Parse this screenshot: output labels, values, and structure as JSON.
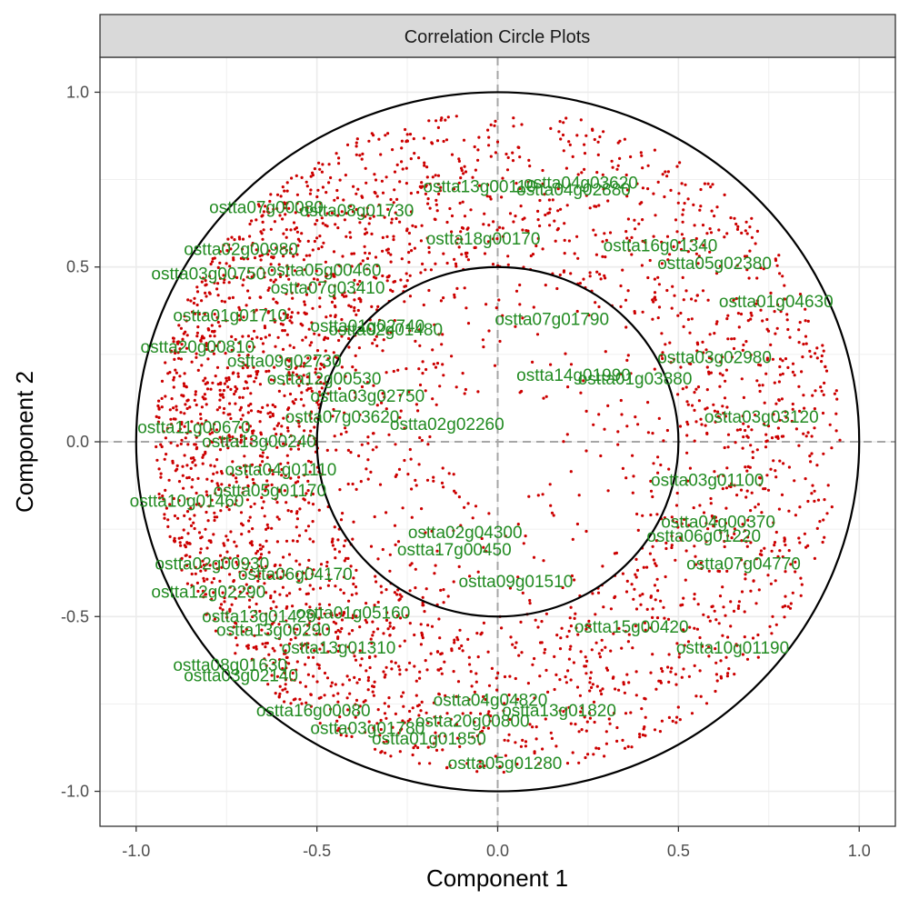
{
  "chart_data": {
    "type": "scatter",
    "panel_title": "Correlation Circle Plots",
    "xlabel": "Component  1",
    "ylabel": "Component  2",
    "xlim": [
      -1.1,
      1.1
    ],
    "ylim": [
      -1.1,
      1.1
    ],
    "x_ticks": [
      "-1.0",
      "-0.5",
      "0.0",
      "0.5",
      "1.0"
    ],
    "y_ticks": [
      "-1.0",
      "-0.5",
      "0.0",
      "0.5",
      "1.0"
    ],
    "x_tick_values": [
      -1.0,
      -0.5,
      0.0,
      0.5,
      1.0
    ],
    "y_tick_values": [
      -1.0,
      -0.5,
      0.0,
      0.5,
      1.0
    ],
    "circles": [
      {
        "radius": 1.0
      },
      {
        "radius": 0.5
      }
    ],
    "reference_lines": {
      "x": 0,
      "y": 0,
      "style": "dashed"
    },
    "grid": true,
    "legend": "none",
    "colors": {
      "points": "#cc0000",
      "labels": "#228b22",
      "circles": "#000000",
      "reference_lines": "#a6a6a6",
      "strip_background": "#d9d9d9",
      "grid": "#ebebeb"
    },
    "point_cloud": {
      "count": 3200,
      "note_inner_radius": 0.15,
      "outer_radius": 0.95
    },
    "labeled_points": [
      {
        "label": "ostta13g00110",
        "x": -0.05,
        "y": 0.73
      },
      {
        "label": "ostta04g03620",
        "x": 0.23,
        "y": 0.74
      },
      {
        "label": "ostta04g02880",
        "x": 0.21,
        "y": 0.72
      },
      {
        "label": "ostta07g00080",
        "x": -0.64,
        "y": 0.67
      },
      {
        "label": "ostta08g01730",
        "x": -0.39,
        "y": 0.66
      },
      {
        "label": "ostta18g00170",
        "x": -0.04,
        "y": 0.58
      },
      {
        "label": "ostta16g01340",
        "x": 0.45,
        "y": 0.56
      },
      {
        "label": "ostta05g02380",
        "x": 0.6,
        "y": 0.51
      },
      {
        "label": "ostta01g04630",
        "x": 0.77,
        "y": 0.4
      },
      {
        "label": "ostta02g00980",
        "x": -0.71,
        "y": 0.55
      },
      {
        "label": "ostta05g00460",
        "x": -0.48,
        "y": 0.49
      },
      {
        "label": "ostta07g03410",
        "x": -0.47,
        "y": 0.44
      },
      {
        "label": "ostta03g00750",
        "x": -0.8,
        "y": 0.48
      },
      {
        "label": "ostta01g01710",
        "x": -0.74,
        "y": 0.36
      },
      {
        "label": "ostta01g02740",
        "x": -0.36,
        "y": 0.33
      },
      {
        "label": "ostta02g01480",
        "x": -0.31,
        "y": 0.32
      },
      {
        "label": "ostta07g01790",
        "x": 0.15,
        "y": 0.35
      },
      {
        "label": "ostta14g01990",
        "x": 0.21,
        "y": 0.19
      },
      {
        "label": "ostta01g03880",
        "x": 0.38,
        "y": 0.18
      },
      {
        "label": "ostta03g02980",
        "x": 0.6,
        "y": 0.24
      },
      {
        "label": "ostta03g03120",
        "x": 0.73,
        "y": 0.07
      },
      {
        "label": "ostta20g00810",
        "x": -0.83,
        "y": 0.27
      },
      {
        "label": "ostta09g02730",
        "x": -0.59,
        "y": 0.23
      },
      {
        "label": "ostta12g00530",
        "x": -0.48,
        "y": 0.18
      },
      {
        "label": "ostta03g02750",
        "x": -0.36,
        "y": 0.13
      },
      {
        "label": "ostta07g03620",
        "x": -0.43,
        "y": 0.07
      },
      {
        "label": "ostta02g02260",
        "x": -0.14,
        "y": 0.05
      },
      {
        "label": "ostta11g00670",
        "x": -0.84,
        "y": 0.04
      },
      {
        "label": "ostta13g00240",
        "x": -0.66,
        "y": 0.0
      },
      {
        "label": "ostta04g01110",
        "x": -0.6,
        "y": -0.08
      },
      {
        "label": "ostta03g01100",
        "x": 0.58,
        "y": -0.11
      },
      {
        "label": "ostta10g01460",
        "x": -0.86,
        "y": -0.17
      },
      {
        "label": "ostta05g01170",
        "x": -0.63,
        "y": -0.14
      },
      {
        "label": "ostta02g04300",
        "x": -0.09,
        "y": -0.26
      },
      {
        "label": "ostta04g00370",
        "x": 0.61,
        "y": -0.23
      },
      {
        "label": "ostta06g01220",
        "x": 0.57,
        "y": -0.27
      },
      {
        "label": "ostta17g00450",
        "x": -0.12,
        "y": -0.31
      },
      {
        "label": "ostta09g01510",
        "x": 0.05,
        "y": -0.4
      },
      {
        "label": "ostta07g04770",
        "x": 0.68,
        "y": -0.35
      },
      {
        "label": "ostta02g00930",
        "x": -0.79,
        "y": -0.35
      },
      {
        "label": "ostta12g02290",
        "x": -0.8,
        "y": -0.43
      },
      {
        "label": "ostta06g04170",
        "x": -0.56,
        "y": -0.38
      },
      {
        "label": "ostta13g01420",
        "x": -0.66,
        "y": -0.5
      },
      {
        "label": "ostta01g05160",
        "x": -0.4,
        "y": -0.49
      },
      {
        "label": "ostta13g00290",
        "x": -0.62,
        "y": -0.54
      },
      {
        "label": "ostta15g00420",
        "x": 0.37,
        "y": -0.53
      },
      {
        "label": "ostta10g01190",
        "x": 0.65,
        "y": -0.59
      },
      {
        "label": "ostta08g01630",
        "x": -0.74,
        "y": -0.64
      },
      {
        "label": "ostta13g01310",
        "x": -0.44,
        "y": -0.59
      },
      {
        "label": "ostta03g02140",
        "x": -0.71,
        "y": -0.67
      },
      {
        "label": "ostta04g04820",
        "x": -0.02,
        "y": -0.74
      },
      {
        "label": "ostta16g00080",
        "x": -0.51,
        "y": -0.77
      },
      {
        "label": "ostta13g01820",
        "x": 0.17,
        "y": -0.77
      },
      {
        "label": "ostta20g00800",
        "x": -0.07,
        "y": -0.8
      },
      {
        "label": "ostta03g01780",
        "x": -0.36,
        "y": -0.82
      },
      {
        "label": "ostta01g01850",
        "x": -0.19,
        "y": -0.85
      },
      {
        "label": "ostta05g01280",
        "x": 0.02,
        "y": -0.92
      }
    ]
  }
}
